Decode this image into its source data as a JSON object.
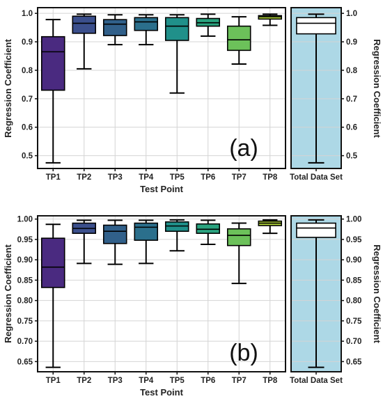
{
  "chart_data": [
    {
      "type": "boxplot",
      "panel_label": "(a)",
      "xlabel": "Test Point",
      "ylabel_left": "Regression Coefficient",
      "ylabel_right": "Regression Coefficient",
      "ylim": [
        0.455,
        1.02
      ],
      "yticks": [
        0.5,
        0.6,
        0.7,
        0.8,
        0.9,
        1.0
      ],
      "ytick_labels": [
        "0.5",
        "0.6",
        "0.7",
        "0.8",
        "0.9",
        "1.0"
      ],
      "grid": true,
      "categories": [
        "TP1",
        "TP2",
        "TP3",
        "TP4",
        "TP5",
        "TP6",
        "TP7",
        "TP8"
      ],
      "boxes": [
        {
          "label": "TP1",
          "min": 0.475,
          "q1": 0.73,
          "median": 0.865,
          "q3": 0.918,
          "max": 0.978,
          "color": "#4a2a80"
        },
        {
          "label": "TP2",
          "min": 0.805,
          "q1": 0.93,
          "median": 0.965,
          "q3": 0.99,
          "max": 0.997,
          "color": "#3b4f8c"
        },
        {
          "label": "TP3",
          "min": 0.89,
          "q1": 0.922,
          "median": 0.962,
          "q3": 0.978,
          "max": 0.995,
          "color": "#31608a"
        },
        {
          "label": "TP4",
          "min": 0.89,
          "q1": 0.94,
          "median": 0.97,
          "q3": 0.985,
          "max": 0.995,
          "color": "#2b6f8c"
        },
        {
          "label": "TP5",
          "min": 0.72,
          "q1": 0.905,
          "median": 0.955,
          "q3": 0.985,
          "max": 0.995,
          "color": "#20908a"
        },
        {
          "label": "TP6",
          "min": 0.92,
          "q1": 0.955,
          "median": 0.967,
          "q3": 0.982,
          "max": 0.997,
          "color": "#2aa37f"
        },
        {
          "label": "TP7",
          "min": 0.822,
          "q1": 0.87,
          "median": 0.907,
          "q3": 0.955,
          "max": 0.988,
          "color": "#6cc15a"
        },
        {
          "label": "TP8",
          "min": 0.958,
          "q1": 0.98,
          "median": 0.988,
          "q3": 0.992,
          "max": 0.997,
          "color": "#b5d93a"
        }
      ],
      "total": {
        "label": "Total Data Set",
        "min": 0.475,
        "q1": 0.928,
        "median": 0.965,
        "q3": 0.985,
        "max": 0.997,
        "color": "#ffffff",
        "background": "#add8e6"
      }
    },
    {
      "type": "boxplot",
      "panel_label": "(b)",
      "xlabel": "Test Point",
      "ylabel_left": "Regression Coefficient",
      "ylabel_right": "Regression Coefficient",
      "ylim": [
        0.625,
        1.008
      ],
      "yticks": [
        0.65,
        0.7,
        0.75,
        0.8,
        0.85,
        0.9,
        0.95,
        1.0
      ],
      "ytick_labels": [
        "0.65",
        "0.70",
        "0.75",
        "0.80",
        "0.85",
        "0.90",
        "0.95",
        "1.00"
      ],
      "grid": true,
      "categories": [
        "TP1",
        "TP2",
        "TP3",
        "TP4",
        "TP5",
        "TP6",
        "TP7",
        "TP8"
      ],
      "boxes": [
        {
          "label": "TP1",
          "min": 0.636,
          "q1": 0.832,
          "median": 0.882,
          "q3": 0.953,
          "max": 0.987,
          "color": "#4a2a80"
        },
        {
          "label": "TP2",
          "min": 0.891,
          "q1": 0.965,
          "median": 0.977,
          "q3": 0.99,
          "max": 0.997,
          "color": "#3b4f8c"
        },
        {
          "label": "TP3",
          "min": 0.889,
          "q1": 0.94,
          "median": 0.97,
          "q3": 0.985,
          "max": 0.997,
          "color": "#31608a"
        },
        {
          "label": "TP4",
          "min": 0.891,
          "q1": 0.948,
          "median": 0.98,
          "q3": 0.99,
          "max": 0.997,
          "color": "#2b6f8c"
        },
        {
          "label": "TP5",
          "min": 0.922,
          "q1": 0.97,
          "median": 0.983,
          "q3": 0.993,
          "max": 0.998,
          "color": "#20908a"
        },
        {
          "label": "TP6",
          "min": 0.938,
          "q1": 0.965,
          "median": 0.975,
          "q3": 0.988,
          "max": 0.997,
          "color": "#2aa37f"
        },
        {
          "label": "TP7",
          "min": 0.842,
          "q1": 0.935,
          "median": 0.96,
          "q3": 0.976,
          "max": 0.99,
          "color": "#6cc15a"
        },
        {
          "label": "TP8",
          "min": 0.965,
          "q1": 0.984,
          "median": 0.99,
          "q3": 0.995,
          "max": 0.998,
          "color": "#b5d93a"
        }
      ],
      "total": {
        "label": "Total Data Set",
        "min": 0.636,
        "q1": 0.955,
        "median": 0.978,
        "q3": 0.99,
        "max": 0.998,
        "color": "#ffffff",
        "background": "#add8e6"
      }
    }
  ]
}
